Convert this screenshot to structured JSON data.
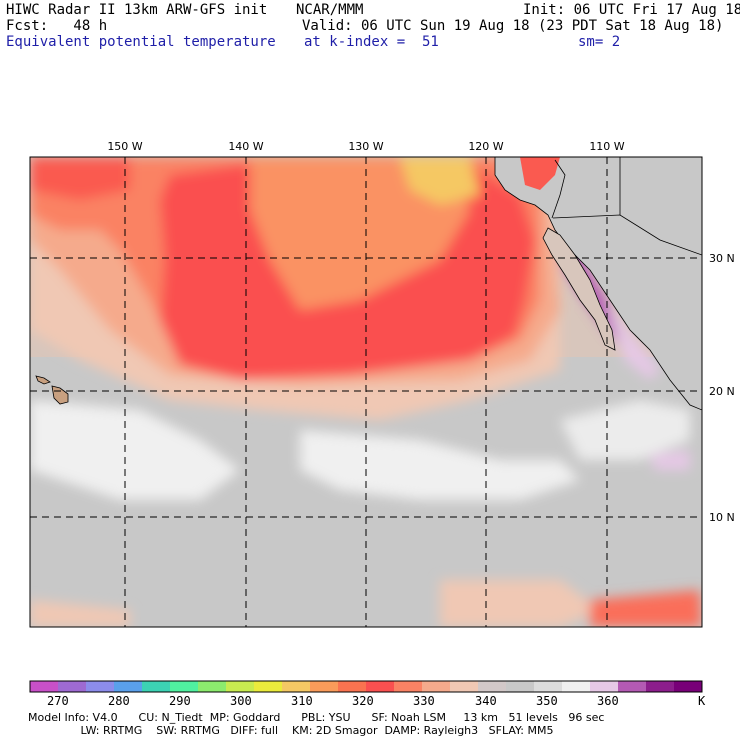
{
  "header": {
    "line1_left": "HIWC Radar II 13km ARW-GFS init",
    "line1_mid": "NCAR/MMM",
    "line1_right": "Init: 06 UTC Fri 17 Aug 18",
    "line2_left": "Fcst:   48 h",
    "line2_right": "Valid: 06 UTC Sun 19 Aug 18 (23 PDT Sat 18 Aug 18)",
    "line3_left": "Equivalent potential temperature",
    "line3_mid": "at k-index =  51",
    "line3_right": "sm= 2"
  },
  "map": {
    "lon_labels": [
      "150 W",
      "140 W",
      "130 W",
      "120 W",
      "110 W"
    ],
    "lat_labels": [
      "30 N",
      "20 N",
      "10 N"
    ]
  },
  "colorbar": {
    "unit": "K",
    "tick_labels": [
      "270",
      "280",
      "290",
      "300",
      "310",
      "320",
      "330",
      "340",
      "350",
      "360"
    ],
    "colors": [
      "#c850c8",
      "#9e6ad2",
      "#8c8ceb",
      "#5aa0eb",
      "#3cd2b4",
      "#50f0a0",
      "#8ceb6e",
      "#c8eb50",
      "#ebeb3c",
      "#f5c864",
      "#fa9b5a",
      "#fa7350",
      "#fa5050",
      "#fa8264",
      "#f5aa8c",
      "#f0c8b4",
      "#d2c8c8",
      "#c8c8c8",
      "#dcdcdc",
      "#f0f0f0",
      "#e6c8e6",
      "#b45ab4",
      "#8c1e8c",
      "#780078"
    ]
  },
  "footer": {
    "line1": "Model Info: V4.0      CU: N_Tiedt  MP: Goddard      PBL: YSU      SF: Noah LSM     13 km   51 levels   96 sec",
    "line2": "               LW: RRTMG    SW: RRTMG   DIFF: full    KM: 2D Smagor  DAMP: Rayleigh3   SFLAY: MM5"
  }
}
